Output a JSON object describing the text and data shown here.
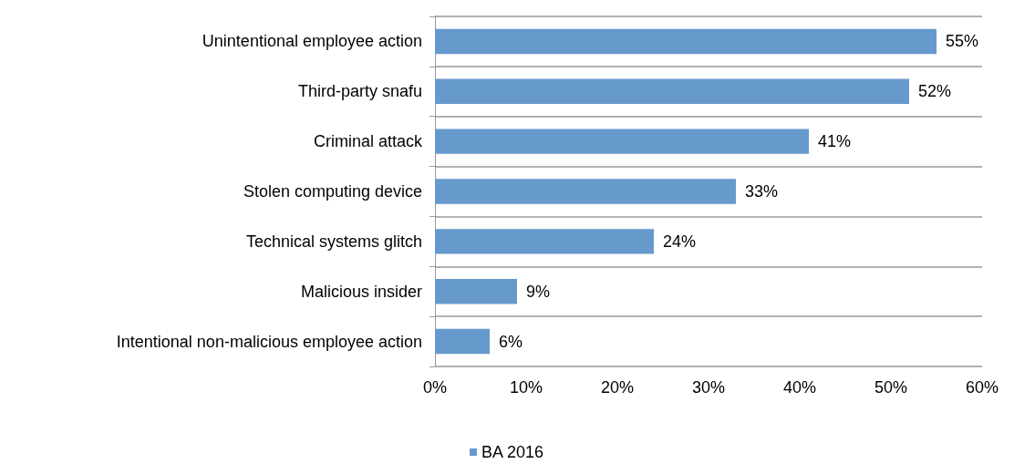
{
  "chart_data": {
    "type": "bar",
    "orientation": "horizontal",
    "categories": [
      "Unintentional employee action",
      "Third-party snafu",
      "Criminal attack",
      "Stolen computing device",
      "Technical systems glitch",
      "Malicious insider",
      "Intentional non-malicious employee action"
    ],
    "series": [
      {
        "name": "BA 2016",
        "color": "#6699cc",
        "values": [
          55,
          52,
          41,
          33,
          24,
          9,
          6
        ],
        "value_labels": [
          "55%",
          "52%",
          "41%",
          "33%",
          "24%",
          "9%",
          "6%"
        ]
      }
    ],
    "xlim": [
      0,
      60
    ],
    "xticks": [
      {
        "value": 0,
        "label": "0%"
      },
      {
        "value": 10,
        "label": "10%"
      },
      {
        "value": 20,
        "label": "20%"
      },
      {
        "value": 30,
        "label": "30%"
      },
      {
        "value": 40,
        "label": "40%"
      },
      {
        "value": 50,
        "label": "50%"
      },
      {
        "value": 60,
        "label": "60%"
      }
    ],
    "grid": "y",
    "legend": "bottom"
  }
}
